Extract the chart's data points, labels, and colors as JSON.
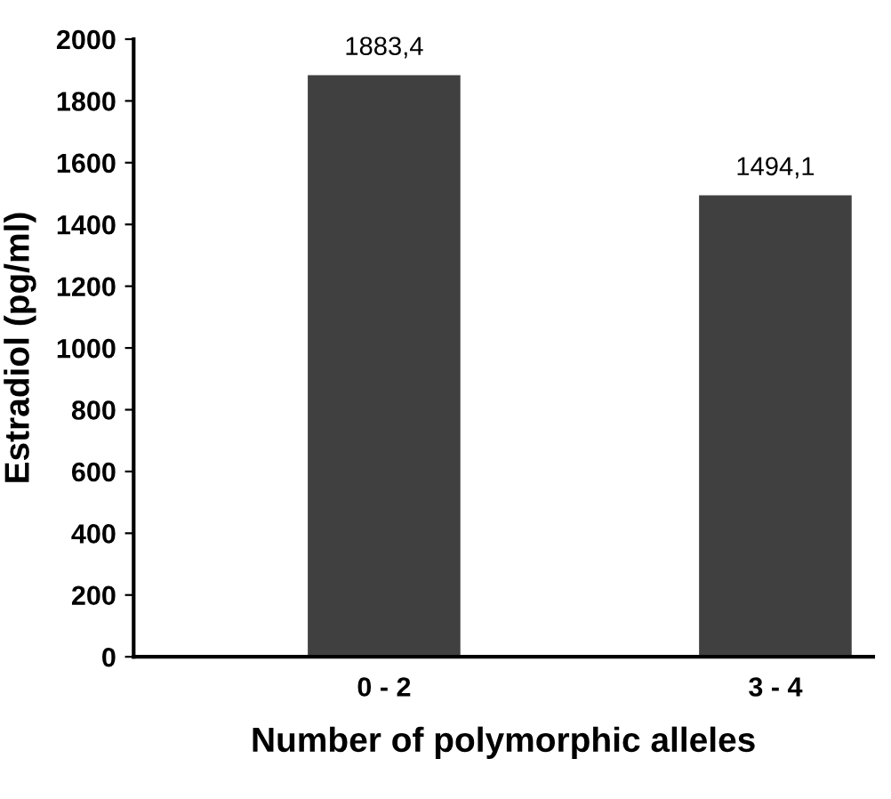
{
  "chart_data": {
    "type": "bar",
    "xlabel": "Number of polymorphic alleles",
    "ylabel": "Estradiol (pg/ml)",
    "categories": [
      "0 - 2",
      "3 - 4"
    ],
    "values": [
      1883.4,
      1494.1
    ],
    "value_labels": [
      "1883,4",
      "1494,1"
    ],
    "color": "#404040",
    "ylim": [
      0,
      2000
    ],
    "yticks": [
      0,
      200,
      400,
      600,
      800,
      1000,
      1200,
      1400,
      1600,
      1800,
      2000
    ],
    "grid": false,
    "legend": false
  }
}
